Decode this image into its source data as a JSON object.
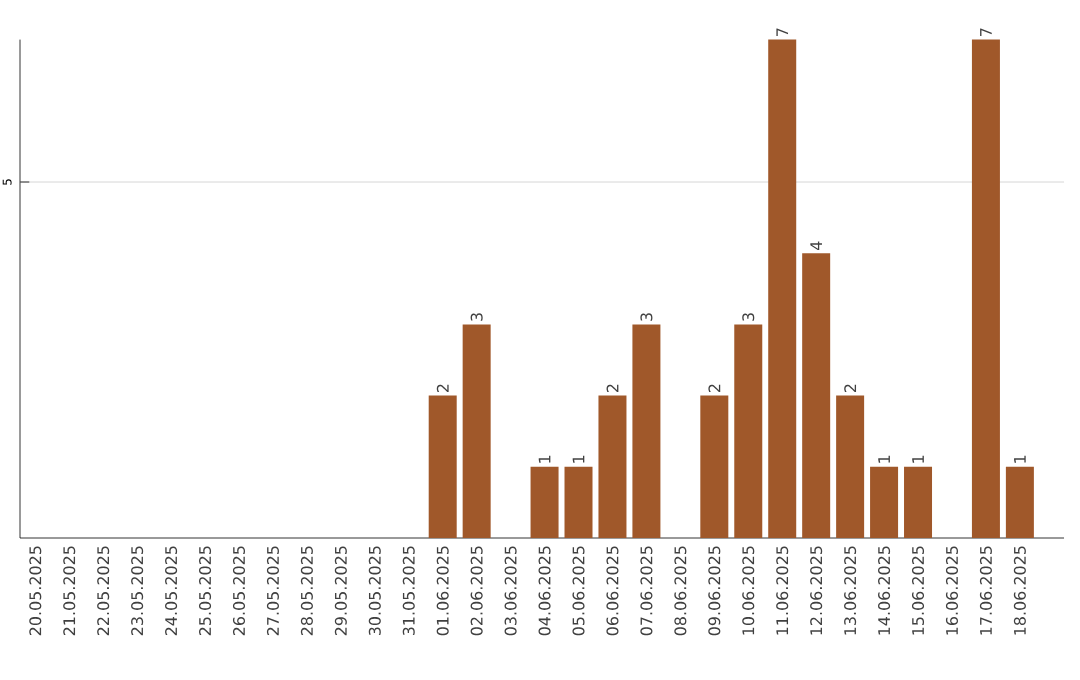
{
  "chart_data": {
    "type": "bar",
    "categories": [
      "20.05.2025",
      "21.05.2025",
      "22.05.2025",
      "23.05.2025",
      "24.05.2025",
      "25.05.2025",
      "26.05.2025",
      "27.05.2025",
      "28.05.2025",
      "29.05.2025",
      "30.05.2025",
      "31.05.2025",
      "01.06.2025",
      "02.06.2025",
      "03.06.2025",
      "04.06.2025",
      "05.06.2025",
      "06.06.2025",
      "07.06.2025",
      "08.06.2025",
      "09.06.2025",
      "10.06.2025",
      "11.06.2025",
      "12.06.2025",
      "13.06.2025",
      "14.06.2025",
      "15.06.2025",
      "16.06.2025",
      "17.06.2025",
      "18.06.2025"
    ],
    "values": [
      null,
      null,
      null,
      null,
      null,
      null,
      null,
      null,
      null,
      null,
      null,
      null,
      2,
      3,
      null,
      1,
      1,
      2,
      3,
      null,
      2,
      3,
      7,
      4,
      2,
      1,
      1,
      null,
      7,
      1
    ],
    "data_labels": true,
    "color": "#a0582a",
    "ylim": [
      0,
      7
    ],
    "ref_lines": [
      {
        "axis": "y",
        "value": 5,
        "label": "5",
        "color": "#cccccc"
      }
    ]
  }
}
